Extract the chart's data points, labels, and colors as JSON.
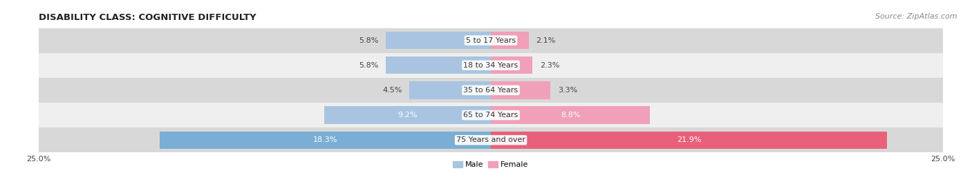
{
  "title": "DISABILITY CLASS: COGNITIVE DIFFICULTY",
  "source": "Source: ZipAtlas.com",
  "categories": [
    "5 to 17 Years",
    "18 to 34 Years",
    "35 to 64 Years",
    "65 to 74 Years",
    "75 Years and over"
  ],
  "male_values": [
    5.8,
    5.8,
    4.5,
    9.2,
    18.3
  ],
  "female_values": [
    2.1,
    2.3,
    3.3,
    8.8,
    21.9
  ],
  "male_color_light": "#a8c4e0",
  "male_color_dark": "#7aaed4",
  "female_color_light": "#f0a0b8",
  "female_color_dark": "#e8607a",
  "bg_dark": "#d8d8d8",
  "bg_light": "#efefef",
  "x_min": -25.0,
  "x_max": 25.0,
  "title_fontsize": 9.5,
  "source_fontsize": 8,
  "bar_fontsize": 8,
  "label_fontsize": 8,
  "legend_fontsize": 8,
  "bar_height": 0.7,
  "inside_label_threshold": 6.0
}
